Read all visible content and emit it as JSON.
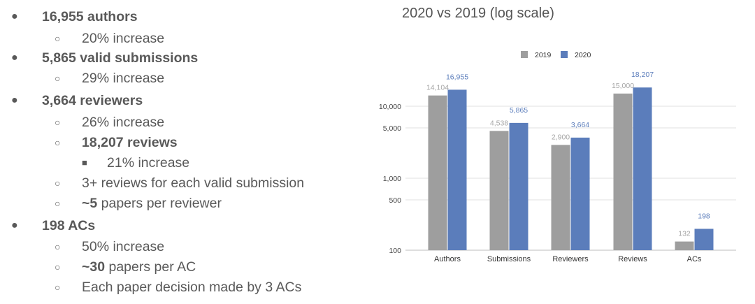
{
  "bullets": [
    {
      "level": 1,
      "marker": "●",
      "bold": "16,955 authors",
      "text": ""
    },
    {
      "level": 2,
      "marker": "○",
      "bold": "",
      "text": "20% increase"
    },
    {
      "level": 1,
      "marker": "●",
      "bold": "5,865 valid submissions",
      "text": ""
    },
    {
      "level": 2,
      "marker": "○",
      "bold": "",
      "text": "29% increase"
    },
    {
      "level": 1,
      "marker": "●",
      "bold": "3,664 reviewers",
      "text": ""
    },
    {
      "level": 2,
      "marker": "○",
      "bold": "",
      "text": "26% increase"
    },
    {
      "level": 2,
      "marker": "○",
      "bold": "18,207 reviews",
      "text": ""
    },
    {
      "level": 3,
      "marker": "■",
      "bold": "",
      "text": "21% increase"
    },
    {
      "level": 2,
      "marker": "○",
      "bold": "",
      "text": "3+ reviews for each valid submission"
    },
    {
      "level": 2,
      "marker": "○",
      "bold": "~5",
      "text": " papers per reviewer"
    },
    {
      "level": 1,
      "marker": "●",
      "bold": "198 ACs",
      "text": ""
    },
    {
      "level": 2,
      "marker": "○",
      "bold": "",
      "text": "50% increase"
    },
    {
      "level": 2,
      "marker": "○",
      "bold": "~30",
      "text": " papers per AC"
    },
    {
      "level": 2,
      "marker": "○",
      "bold": "",
      "text": "Each paper decision made by 3 ACs"
    }
  ],
  "chart_data": {
    "type": "bar",
    "title": "2020 vs 2019 (log scale)",
    "categories": [
      "Authors",
      "Submissions",
      "Reviewers",
      "Reviews",
      "ACs"
    ],
    "series": [
      {
        "name": "2019",
        "color": "#9e9e9e",
        "values": [
          14104,
          4538,
          2900,
          15000,
          132
        ],
        "labels": [
          "14,104",
          "4,538",
          "2,900",
          "15,000",
          "132"
        ],
        "label_color": "#a6a6a6"
      },
      {
        "name": "2020",
        "color": "#5b7dbb",
        "values": [
          16955,
          5865,
          3664,
          18207,
          198
        ],
        "labels": [
          "16,955",
          "5,865",
          "3,664",
          "18,207",
          "198"
        ],
        "label_color": "#5b7dbb"
      }
    ],
    "y_scale": "log",
    "ylim": [
      100,
      25000
    ],
    "y_ticks": [
      100,
      500,
      1000,
      5000,
      10000
    ],
    "y_tick_labels": [
      "100",
      "500",
      "1,000",
      "5,000",
      "10,000"
    ],
    "grid": true,
    "legend": "top"
  }
}
